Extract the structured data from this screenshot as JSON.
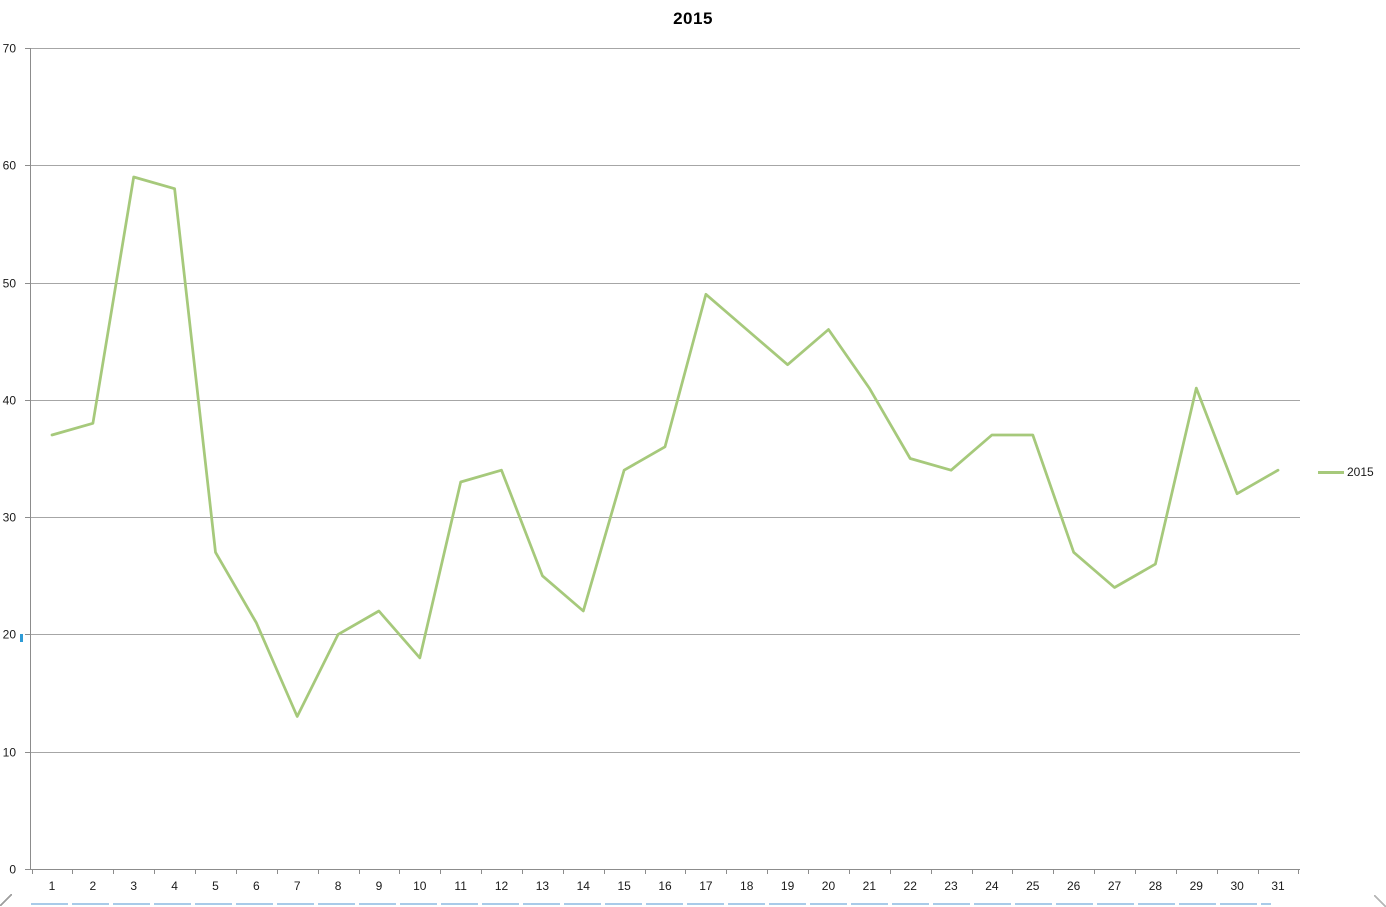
{
  "chart_data": {
    "type": "line",
    "title": "2015",
    "x": [
      "1",
      "2",
      "3",
      "4",
      "5",
      "6",
      "7",
      "8",
      "9",
      "10",
      "11",
      "12",
      "13",
      "14",
      "15",
      "16",
      "17",
      "18",
      "19",
      "20",
      "21",
      "22",
      "23",
      "24",
      "25",
      "26",
      "27",
      "28",
      "29",
      "30",
      "31"
    ],
    "series": [
      {
        "name": "2015",
        "color": "#A6C97B",
        "values": [
          37,
          38,
          59,
          58,
          27,
          21,
          13,
          20,
          22,
          18,
          33,
          34,
          25,
          22,
          34,
          36,
          49,
          46,
          43,
          46,
          41,
          35,
          34,
          37,
          37,
          27,
          24,
          26,
          41,
          32,
          34
        ]
      }
    ],
    "ylim": [
      0,
      70
    ],
    "yticks": [
      0,
      10,
      20,
      30,
      40,
      50,
      60,
      70
    ],
    "xlabel": "",
    "ylabel": "",
    "grid": "horizontal",
    "legend_position": "right"
  },
  "legend": {
    "label": "2015"
  },
  "colors": {
    "series_green": "#A6C97B",
    "gridline": "#A6A6A6",
    "axis": "#8C8C8C",
    "tick_text": "#1A1A1A",
    "title_text": "#000000",
    "selection_blue": "#A9CBE9",
    "handle_grey": "#9E9E9E"
  }
}
